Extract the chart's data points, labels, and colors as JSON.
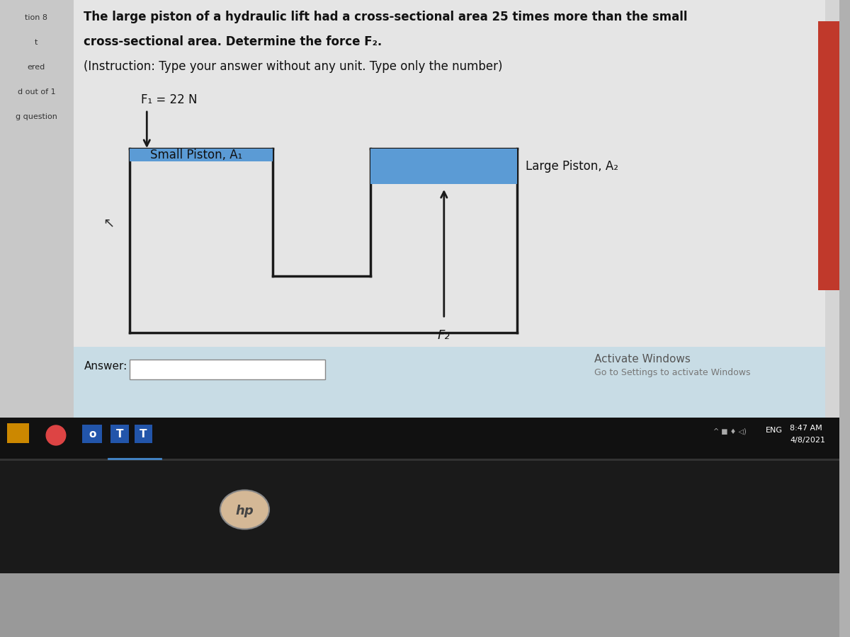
{
  "bg_outer": "#b0b0b0",
  "screen_bg": "#d8d8d8",
  "content_bg": "#e8e8e8",
  "answer_area_bg": "#cce0e8",
  "left_sidebar_bg": "#c0c0c0",
  "title_line1": "The large piston of a hydraulic lift had a cross-sectional area 25 times more than the small",
  "title_line2": "cross-sectional area. Determine the force F₂.",
  "title_line3": "(Instruction: Type your answer without any unit. Type only the number)",
  "sidebar_texts": [
    "tion 8",
    "t",
    "ered",
    "d out of 1",
    "g question"
  ],
  "f1_label": "F₁ = 22 N",
  "small_piston_label": "Small Piston, A₁",
  "large_piston_label": "Large Piston, A₂",
  "f2_label": "F₂",
  "answer_label": "Answer:",
  "activate_windows": "Activate Windows",
  "go_to_settings": "Go to Settings to activate Windows",
  "taskbar_text_time": "8:47 AM",
  "taskbar_text_date": "4/8/2021",
  "eng_text": "ENG",
  "piston_blue": "#5b9bd5",
  "outline_color": "#1a1a1a",
  "taskbar_color": "#111111",
  "taskbar_bar_color": "#1e3a5f",
  "answer_box_color": "#ffffff",
  "red_accent": "#c0392b",
  "laptop_body": "#888888",
  "laptop_base": "#aaaaaa",
  "hp_logo_color": "#d4b896"
}
